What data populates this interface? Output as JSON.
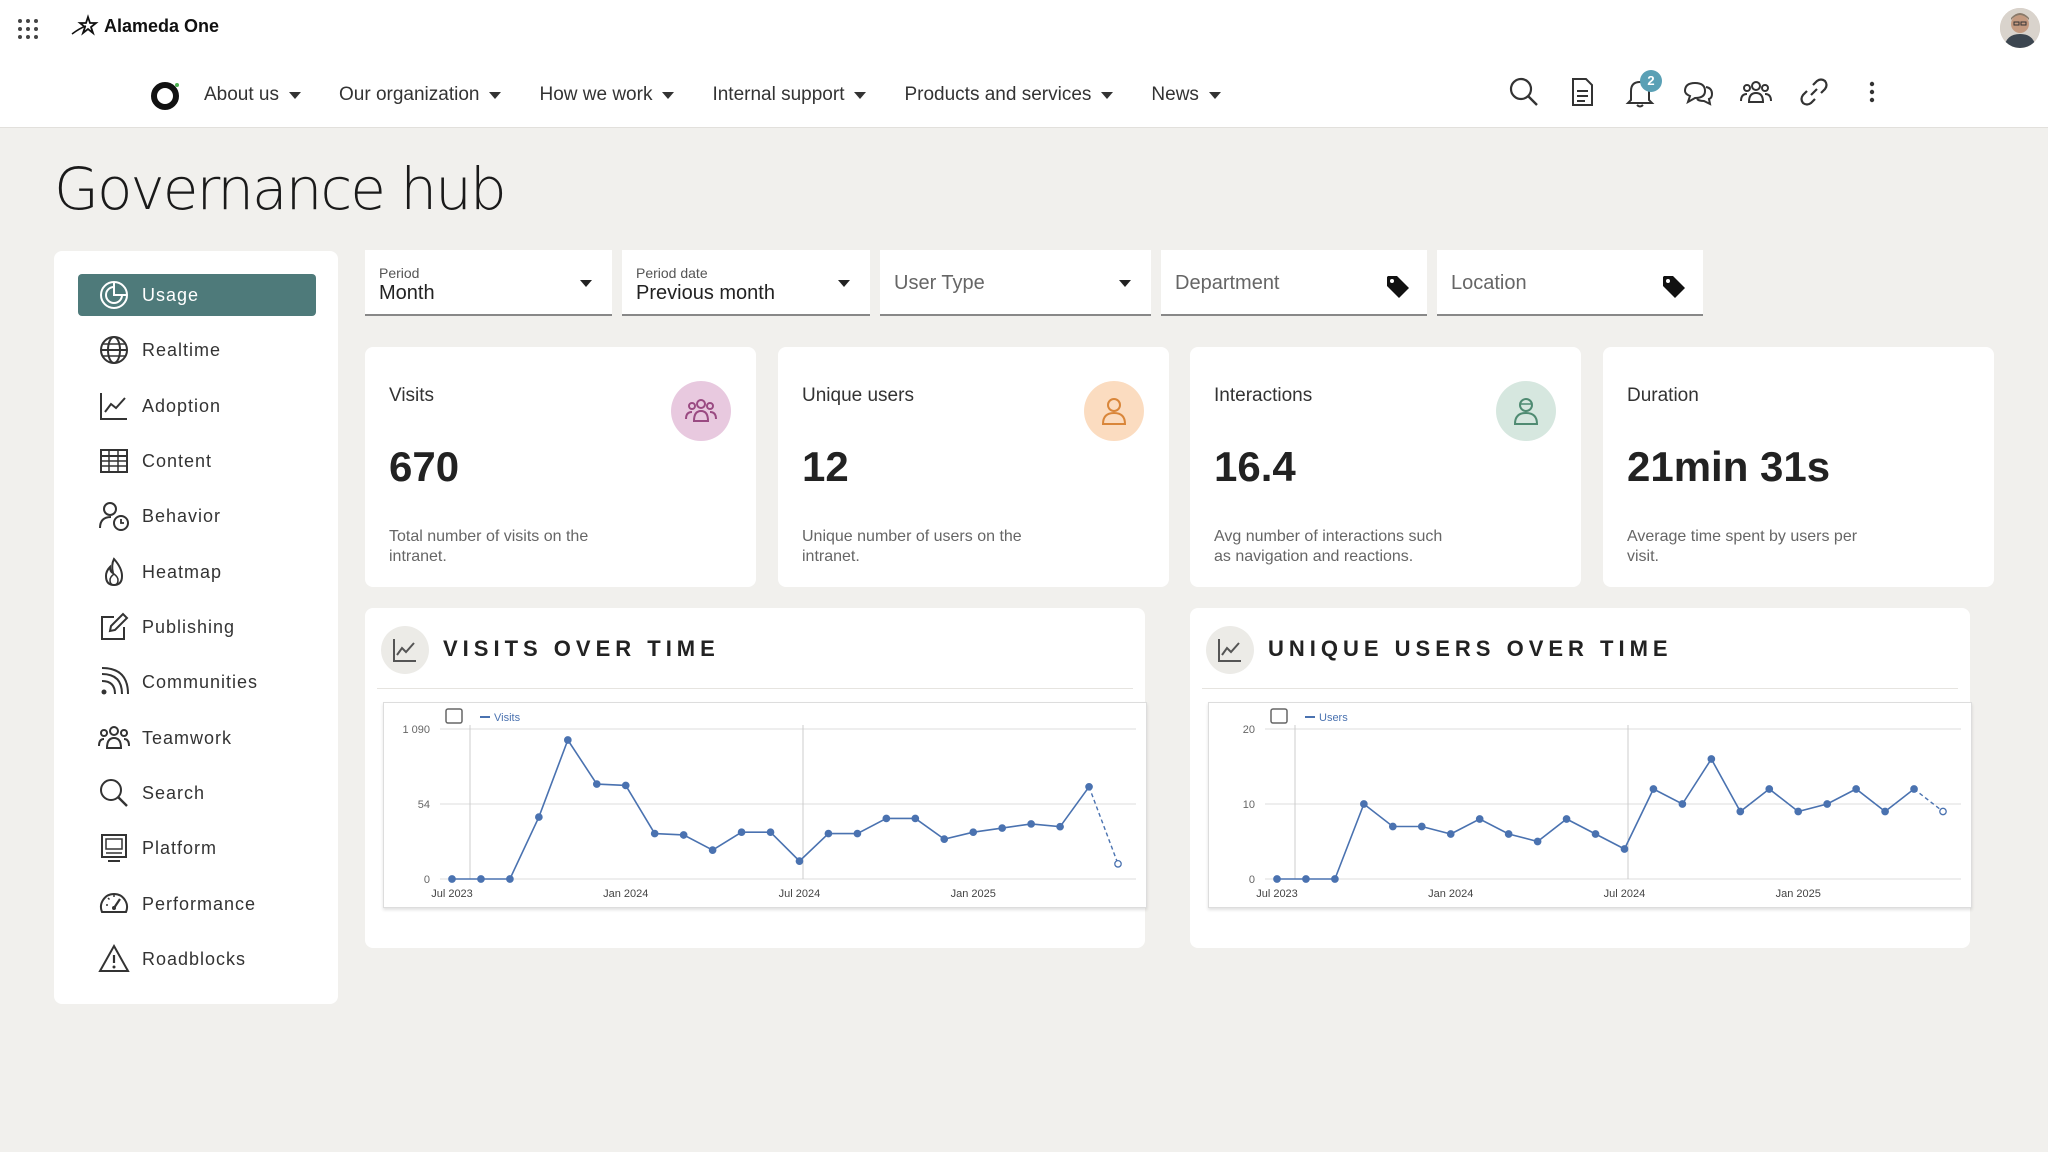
{
  "header": {
    "brand": "Alameda One",
    "nav": [
      {
        "label": "About us"
      },
      {
        "label": "Our organization"
      },
      {
        "label": "How we work"
      },
      {
        "label": "Internal support"
      },
      {
        "label": "Products and services"
      },
      {
        "label": "News"
      }
    ],
    "notification_count": "2",
    "icons": [
      "search-icon",
      "document-icon",
      "bell-icon",
      "chat-icon",
      "people-icon",
      "link-icon",
      "more-icon"
    ]
  },
  "page": {
    "title": "Governance hub"
  },
  "sidebar": {
    "items": [
      {
        "label": "Usage",
        "icon": "pie-chart-icon",
        "active": true
      },
      {
        "label": "Realtime",
        "icon": "globe-icon"
      },
      {
        "label": "Adoption",
        "icon": "trend-chart-icon"
      },
      {
        "label": "Content",
        "icon": "table-icon"
      },
      {
        "label": "Behavior",
        "icon": "user-clock-icon"
      },
      {
        "label": "Heatmap",
        "icon": "flame-icon"
      },
      {
        "label": "Publishing",
        "icon": "edit-icon"
      },
      {
        "label": "Communities",
        "icon": "rss-icon"
      },
      {
        "label": "Teamwork",
        "icon": "team-icon"
      },
      {
        "label": "Search",
        "icon": "search-icon"
      },
      {
        "label": "Platform",
        "icon": "monitor-icon"
      },
      {
        "label": "Performance",
        "icon": "gauge-icon"
      },
      {
        "label": "Roadblocks",
        "icon": "warning-icon"
      }
    ]
  },
  "filters": {
    "period": {
      "label": "Period",
      "value": "Month"
    },
    "period_date": {
      "label": "Period date",
      "value": "Previous month"
    },
    "user_type": {
      "placeholder": "User Type"
    },
    "department": {
      "placeholder": "Department"
    },
    "location": {
      "placeholder": "Location"
    }
  },
  "kpis": [
    {
      "title": "Visits",
      "value": "670",
      "desc": "Total number of visits on the intranet.",
      "icon": "group-icon",
      "icon_bg": "#e8c9df",
      "icon_color": "#9a4a82"
    },
    {
      "title": "Unique users",
      "value": "12",
      "desc": "Unique number of users on the intranet.",
      "icon": "user-icon",
      "icon_bg": "#fbdcc0",
      "icon_color": "#d9863a"
    },
    {
      "title": "Interactions",
      "value": "16.4",
      "desc": "Avg number of interactions such as navigation and reactions.",
      "icon": "interaction-icon",
      "icon_bg": "#d6e7df",
      "icon_color": "#4f8b72"
    },
    {
      "title": "Duration",
      "value": "21min 31s",
      "desc": "Average time spent by users per visit."
    }
  ],
  "panels": {
    "visits": {
      "title": "VISITS OVER TIME"
    },
    "users": {
      "title": "UNIQUE USERS OVER TIME"
    }
  },
  "chart_data": [
    {
      "type": "line",
      "title": "VISITS OVER TIME",
      "legend": "Visits",
      "legend_position": "top-left",
      "y_ticks": [
        "0",
        "54",
        "1 090"
      ],
      "x_ticks": [
        "Jul 2023",
        "Jan 2024",
        "Jul 2024",
        "Jan 2025"
      ],
      "ylim": [
        0,
        1090
      ],
      "series": [
        {
          "name": "Visits",
          "color": "#4a72b0",
          "values": [
            0,
            0,
            0,
            450,
            1010,
            690,
            680,
            330,
            320,
            210,
            340,
            340,
            130,
            330,
            330,
            440,
            440,
            290,
            340,
            370,
            400,
            380,
            670,
            110
          ],
          "last_segment_dashed": true
        }
      ],
      "grid": true
    },
    {
      "type": "line",
      "title": "UNIQUE USERS OVER TIME",
      "legend": "Users",
      "legend_position": "top-left",
      "y_ticks": [
        "0",
        "10",
        "20"
      ],
      "x_ticks": [
        "Jul 2023",
        "Jan 2024",
        "Jul 2024",
        "Jan 2025"
      ],
      "ylim": [
        0,
        20
      ],
      "series": [
        {
          "name": "Users",
          "color": "#4a72b0",
          "values": [
            0,
            0,
            0,
            10,
            7,
            7,
            6,
            8,
            6,
            5,
            8,
            6,
            4,
            12,
            10,
            16,
            9,
            12,
            9,
            10,
            12,
            9,
            12,
            9
          ],
          "last_segment_dashed": true
        }
      ],
      "grid": true
    }
  ]
}
